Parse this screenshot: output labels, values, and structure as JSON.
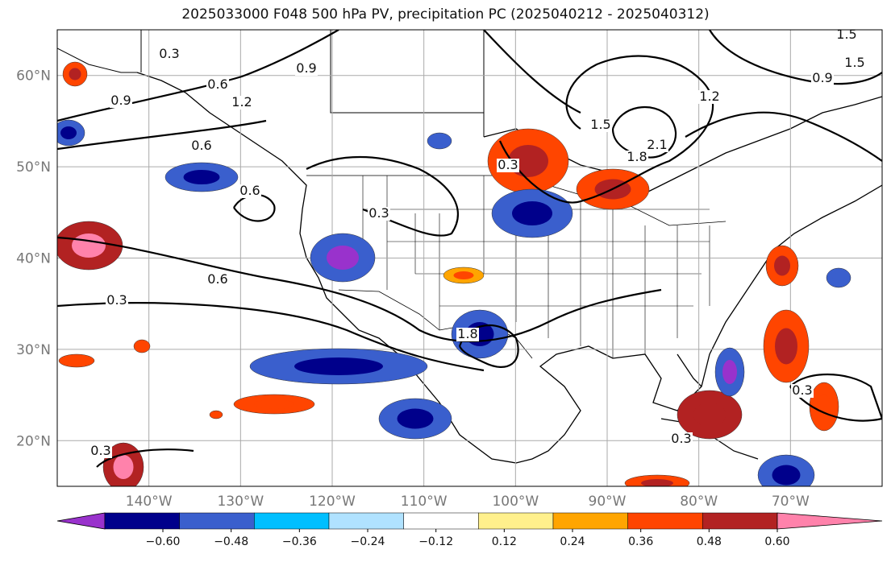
{
  "title": "2025033000 F048 500 hPa PV, precipitation PC (2025040212 - 2025040312)",
  "map": {
    "lat_range": [
      15,
      65
    ],
    "lon_range": [
      -150,
      -60
    ],
    "lat_ticks": [
      {
        "value": 20,
        "label": "20°N"
      },
      {
        "value": 30,
        "label": "30°N"
      },
      {
        "value": 40,
        "label": "40°N"
      },
      {
        "value": 50,
        "label": "50°N"
      },
      {
        "value": 60,
        "label": "60°N"
      }
    ],
    "lon_ticks": [
      {
        "value": -140,
        "label": "140°W"
      },
      {
        "value": -130,
        "label": "130°W"
      },
      {
        "value": -120,
        "label": "120°W"
      },
      {
        "value": -110,
        "label": "110°W"
      },
      {
        "value": -100,
        "label": "100°W"
      },
      {
        "value": -90,
        "label": "90°W"
      },
      {
        "value": -80,
        "label": "80°W"
      },
      {
        "value": -70,
        "label": "70°W"
      }
    ],
    "contour_labels": [
      "0.3",
      "0.6",
      "0.9",
      "1.2",
      "1.5",
      "1.8",
      "2.1"
    ]
  },
  "colorbar": {
    "colors": [
      "#9932cc",
      "#00008b",
      "#3a5fcd",
      "#00bfff",
      "#b0e2ff",
      "#ffffff",
      "#fff08c",
      "#ffa500",
      "#ff4500",
      "#b22222",
      "#ff82ab"
    ],
    "labels": [
      "−0.60",
      "−0.48",
      "−0.36",
      "−0.24",
      "−0.12",
      "0.12",
      "0.24",
      "0.36",
      "0.48",
      "0.60"
    ]
  }
}
